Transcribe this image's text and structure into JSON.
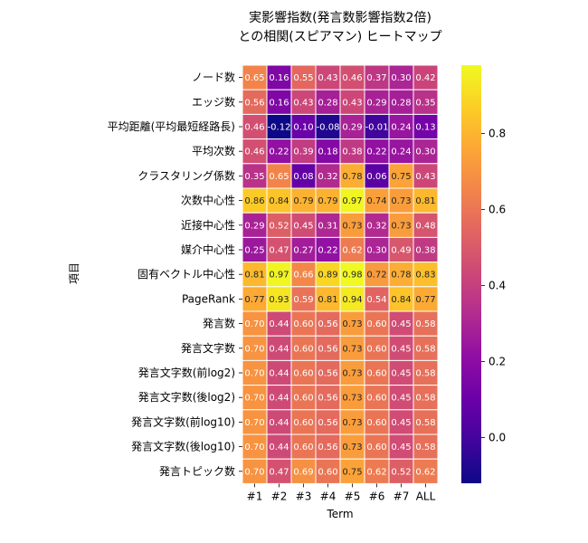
{
  "chart_data": {
    "type": "heatmap",
    "title": [
      "実影響指数(発言数影響指数2倍)",
      "との相関(スピアマン) ヒートマップ"
    ],
    "xlabel": "Term",
    "ylabel": "項目",
    "x_categories": [
      "#1",
      "#2",
      "#3",
      "#4",
      "#5",
      "#6",
      "#7",
      "ALL"
    ],
    "y_categories": [
      "ノード数",
      "エッジ数",
      "平均距離(平均最短経路長)",
      "平均次数",
      "クラスタリング係数",
      "次数中心性",
      "近接中心性",
      "媒介中心性",
      "固有ベクトル中心性",
      "PageRank",
      "発言数",
      "発言文字数",
      "発言文字数(前log2)",
      "発言文字数(後log2)",
      "発言文字数(前log10)",
      "発言文字数(後log10)",
      "発言トピック数"
    ],
    "values": [
      [
        0.65,
        0.16,
        0.55,
        0.43,
        0.46,
        0.37,
        0.3,
        0.42
      ],
      [
        0.56,
        0.16,
        0.43,
        0.28,
        0.43,
        0.29,
        0.28,
        0.35
      ],
      [
        0.46,
        -0.12,
        0.1,
        -0.08,
        0.29,
        -0.01,
        0.24,
        0.13
      ],
      [
        0.46,
        0.22,
        0.39,
        0.18,
        0.38,
        0.22,
        0.24,
        0.3
      ],
      [
        0.35,
        0.65,
        0.08,
        0.32,
        0.78,
        0.06,
        0.75,
        0.43
      ],
      [
        0.86,
        0.84,
        0.79,
        0.79,
        0.97,
        0.74,
        0.73,
        0.81
      ],
      [
        0.29,
        0.52,
        0.45,
        0.31,
        0.73,
        0.32,
        0.73,
        0.48
      ],
      [
        0.25,
        0.47,
        0.27,
        0.22,
        0.62,
        0.3,
        0.49,
        0.38
      ],
      [
        0.81,
        0.97,
        0.66,
        0.89,
        0.98,
        0.72,
        0.78,
        0.83
      ],
      [
        0.77,
        0.93,
        0.59,
        0.81,
        0.94,
        0.54,
        0.84,
        0.77
      ],
      [
        0.7,
        0.44,
        0.6,
        0.56,
        0.73,
        0.6,
        0.45,
        0.58
      ],
      [
        0.7,
        0.44,
        0.6,
        0.56,
        0.73,
        0.6,
        0.45,
        0.58
      ],
      [
        0.7,
        0.44,
        0.6,
        0.56,
        0.73,
        0.6,
        0.45,
        0.58
      ],
      [
        0.7,
        0.44,
        0.6,
        0.56,
        0.73,
        0.6,
        0.45,
        0.58
      ],
      [
        0.7,
        0.44,
        0.6,
        0.56,
        0.73,
        0.6,
        0.45,
        0.58
      ],
      [
        0.7,
        0.44,
        0.6,
        0.56,
        0.73,
        0.6,
        0.45,
        0.58
      ],
      [
        0.7,
        0.47,
        0.69,
        0.6,
        0.75,
        0.62,
        0.52,
        0.62
      ]
    ],
    "colormap": "plasma",
    "vmin": -0.12,
    "vmax": 0.98,
    "colorbar_ticks": [
      0.0,
      0.2,
      0.4,
      0.6,
      0.8
    ],
    "colorbar_tick_labels": [
      "0.0",
      "0.2",
      "0.4",
      "0.6",
      "0.8"
    ],
    "cell_border_color": "#ffffff"
  }
}
